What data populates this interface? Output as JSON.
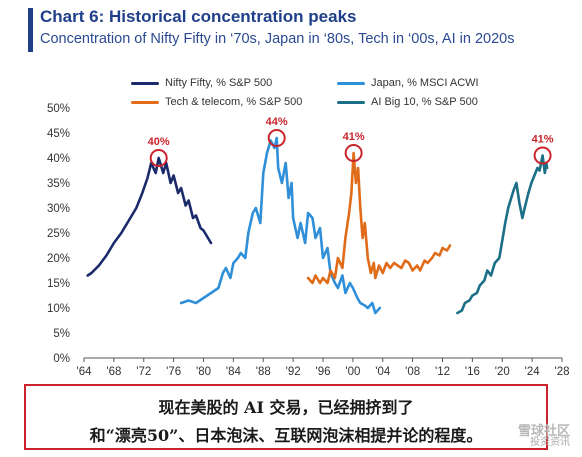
{
  "chart_data": {
    "type": "line",
    "title": "Chart 6: Historical concentration peaks",
    "subtitle": "Concentration of Nifty Fifty in ‘70s, Japan in ‘80s, Tech in ‘00s, AI in 2020s",
    "xlabel": "",
    "ylabel": "",
    "x_range": [
      1964,
      2028
    ],
    "ylim": [
      0,
      50
    ],
    "x_tick_labels": [
      "'64",
      "'68",
      "'72",
      "'76",
      "'80",
      "'84",
      "'88",
      "'92",
      "'96",
      "'00",
      "'04",
      "'08",
      "'12",
      "'16",
      "'20",
      "'24",
      "'28"
    ],
    "y_tick_labels": [
      "0%",
      "5%",
      "10%",
      "15%",
      "20%",
      "25%",
      "30%",
      "35%",
      "40%",
      "45%",
      "50%"
    ],
    "grid": false,
    "legend_position": "top",
    "series": [
      {
        "name": "Nifty Fifty, % S&P 500",
        "color": "#1b2a6b",
        "points": [
          [
            1964.5,
            16.5
          ],
          [
            1965,
            17
          ],
          [
            1966,
            18.5
          ],
          [
            1967,
            20.5
          ],
          [
            1968,
            23
          ],
          [
            1969,
            25
          ],
          [
            1970,
            27.5
          ],
          [
            1971,
            30
          ],
          [
            1971.8,
            33
          ],
          [
            1972.5,
            36
          ],
          [
            1973,
            39
          ],
          [
            1973.6,
            37
          ],
          [
            1974,
            40
          ],
          [
            1974.6,
            37
          ],
          [
            1975,
            39
          ],
          [
            1975.6,
            35
          ],
          [
            1976,
            36.5
          ],
          [
            1976.6,
            33
          ],
          [
            1977,
            34
          ],
          [
            1977.6,
            30.5
          ],
          [
            1978,
            31.5
          ],
          [
            1978.6,
            28
          ],
          [
            1979,
            28.5
          ],
          [
            1979.6,
            26
          ],
          [
            1980,
            25.5
          ],
          [
            1980.6,
            24
          ],
          [
            1981,
            23
          ]
        ]
      },
      {
        "name": "Japan, % MSCI ACWI",
        "color": "#2f8fd8",
        "points": [
          [
            1977,
            11
          ],
          [
            1978,
            11.5
          ],
          [
            1979,
            11
          ],
          [
            1980,
            12
          ],
          [
            1981,
            13
          ],
          [
            1982,
            14
          ],
          [
            1982.6,
            17
          ],
          [
            1983,
            18
          ],
          [
            1983.6,
            16
          ],
          [
            1984,
            19
          ],
          [
            1984.6,
            20
          ],
          [
            1985,
            21
          ],
          [
            1985.6,
            20
          ],
          [
            1986,
            25
          ],
          [
            1986.6,
            29
          ],
          [
            1987,
            30
          ],
          [
            1987.6,
            27
          ],
          [
            1988,
            37
          ],
          [
            1988.5,
            41
          ],
          [
            1989,
            43.5
          ],
          [
            1989.5,
            42
          ],
          [
            1989.8,
            44
          ],
          [
            1990,
            38
          ],
          [
            1990.5,
            35
          ],
          [
            1991,
            39
          ],
          [
            1991.4,
            32
          ],
          [
            1991.8,
            35
          ],
          [
            1992,
            28
          ],
          [
            1992.6,
            24
          ],
          [
            1993,
            27
          ],
          [
            1993.6,
            23
          ],
          [
            1994,
            29
          ],
          [
            1994.6,
            28
          ],
          [
            1995,
            24
          ],
          [
            1995.6,
            26
          ],
          [
            1996,
            20
          ],
          [
            1996.6,
            22
          ],
          [
            1997,
            17
          ],
          [
            1997.6,
            15
          ],
          [
            1998,
            14
          ],
          [
            1998.6,
            16.5
          ],
          [
            1999,
            13
          ],
          [
            1999.6,
            15
          ],
          [
            2000,
            14
          ],
          [
            2000.6,
            12
          ],
          [
            2001,
            11
          ],
          [
            2001.6,
            10.5
          ],
          [
            2002,
            10
          ],
          [
            2002.6,
            11
          ],
          [
            2003,
            9
          ],
          [
            2003.6,
            10
          ]
        ]
      },
      {
        "name": "Tech & telecom, % S&P 500",
        "color": "#e06c1a",
        "points": [
          [
            1994,
            16
          ],
          [
            1994.6,
            15
          ],
          [
            1995,
            16.5
          ],
          [
            1995.6,
            15
          ],
          [
            1996,
            16
          ],
          [
            1996.6,
            15
          ],
          [
            1997,
            17.5
          ],
          [
            1997.6,
            16
          ],
          [
            1998,
            20
          ],
          [
            1998.6,
            18
          ],
          [
            1999,
            24
          ],
          [
            1999.5,
            29
          ],
          [
            1999.8,
            33
          ],
          [
            2000.1,
            41
          ],
          [
            2000.4,
            35
          ],
          [
            2000.7,
            38
          ],
          [
            2001,
            30
          ],
          [
            2001.3,
            24
          ],
          [
            2001.6,
            27
          ],
          [
            2002,
            20
          ],
          [
            2002.4,
            17
          ],
          [
            2002.8,
            19
          ],
          [
            2003,
            16
          ],
          [
            2003.5,
            18.5
          ],
          [
            2004,
            17
          ],
          [
            2004.5,
            19
          ],
          [
            2005,
            18
          ],
          [
            2005.5,
            19
          ],
          [
            2006,
            18.5
          ],
          [
            2006.5,
            18
          ],
          [
            2007,
            19.5
          ],
          [
            2007.5,
            19
          ],
          [
            2008,
            17.5
          ],
          [
            2008.6,
            18.5
          ],
          [
            2009,
            17.5
          ],
          [
            2009.6,
            19.5
          ],
          [
            2010,
            19
          ],
          [
            2010.6,
            20
          ],
          [
            2011,
            21
          ],
          [
            2011.6,
            20.5
          ],
          [
            2012,
            22
          ],
          [
            2012.6,
            21.5
          ],
          [
            2013,
            22.5
          ]
        ]
      },
      {
        "name": "AI Big 10, % S&P 500",
        "color": "#1b6f86",
        "points": [
          [
            2014,
            9
          ],
          [
            2014.6,
            9.5
          ],
          [
            2015,
            11
          ],
          [
            2015.6,
            11.5
          ],
          [
            2016,
            12.5
          ],
          [
            2016.6,
            13
          ],
          [
            2017,
            14.5
          ],
          [
            2017.6,
            15.5
          ],
          [
            2018,
            17.5
          ],
          [
            2018.5,
            16.5
          ],
          [
            2019,
            19
          ],
          [
            2019.6,
            20
          ],
          [
            2020,
            23.5
          ],
          [
            2020.4,
            27
          ],
          [
            2020.8,
            30
          ],
          [
            2021,
            31
          ],
          [
            2021.5,
            33.5
          ],
          [
            2021.9,
            35
          ],
          [
            2022.3,
            31
          ],
          [
            2022.7,
            28
          ],
          [
            2023,
            30
          ],
          [
            2023.5,
            33
          ],
          [
            2023.9,
            35
          ],
          [
            2024.3,
            36.5
          ],
          [
            2024.7,
            38
          ],
          [
            2025,
            37.5
          ],
          [
            2025.4,
            40.5
          ],
          [
            2025.7,
            37
          ],
          [
            2025.9,
            39
          ],
          [
            2026,
            38
          ]
        ]
      }
    ],
    "annotations": [
      {
        "label": "40%",
        "x": 1974,
        "y": 40
      },
      {
        "label": "44%",
        "x": 1989.8,
        "y": 44
      },
      {
        "label": "41%",
        "x": 2000.1,
        "y": 41
      },
      {
        "label": "41%",
        "x": 2025.4,
        "y": 40.5
      }
    ],
    "annotation_color": "#c9242c"
  },
  "caption": {
    "line1": "现在美股的 AI 交易，已经拥挤到了",
    "line2": "和“漂亮50”、日本泡沫、互联网泡沫相提并论的程度。"
  },
  "watermark": {
    "line1": "雪球社区",
    "line2": "投资资讯"
  }
}
